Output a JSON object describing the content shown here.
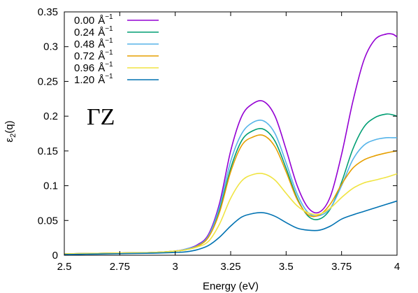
{
  "chart_data": {
    "type": "line",
    "xlabel": "Energy (eV)",
    "ylabel_main": "ε",
    "ylabel_sub": "2",
    "ylabel_rest": "(q)",
    "xlim": [
      2.5,
      4.0
    ],
    "ylim": [
      0,
      0.35
    ],
    "xticks": [
      {
        "value": 2.5,
        "label": "2.5"
      },
      {
        "value": 2.75,
        "label": "2.75"
      },
      {
        "value": 3.0,
        "label": "3"
      },
      {
        "value": 3.25,
        "label": "3.25"
      },
      {
        "value": 3.5,
        "label": "3.5"
      },
      {
        "value": 3.75,
        "label": "3.75"
      },
      {
        "value": 4.0,
        "label": "4"
      }
    ],
    "yticks": [
      {
        "value": 0,
        "label": "0"
      },
      {
        "value": 0.05,
        "label": "0.05"
      },
      {
        "value": 0.1,
        "label": "0.1"
      },
      {
        "value": 0.15,
        "label": "0.15"
      },
      {
        "value": 0.2,
        "label": "0.2"
      },
      {
        "value": 0.25,
        "label": "0.25"
      },
      {
        "value": 0.3,
        "label": "0.3"
      },
      {
        "value": 0.35,
        "label": "0.35"
      }
    ],
    "grid": false,
    "legend_position": "top-left",
    "annotation": "ΓZ",
    "x": [
      2.5,
      2.6,
      2.7,
      2.8,
      2.9,
      3.0,
      3.05,
      3.1,
      3.15,
      3.2,
      3.25,
      3.3,
      3.35,
      3.4,
      3.45,
      3.5,
      3.55,
      3.6,
      3.65,
      3.7,
      3.75,
      3.8,
      3.85,
      3.9,
      3.95,
      3.98,
      4.0
    ],
    "series": [
      {
        "name": "0.00",
        "unit": "Å",
        "unit_sup": "−1",
        "color": "#9400d3",
        "values": [
          0.002,
          0.0025,
          0.003,
          0.0035,
          0.004,
          0.006,
          0.009,
          0.015,
          0.03,
          0.075,
          0.15,
          0.2,
          0.218,
          0.221,
          0.2,
          0.152,
          0.1,
          0.068,
          0.062,
          0.085,
          0.145,
          0.22,
          0.28,
          0.31,
          0.318,
          0.318,
          0.314
        ]
      },
      {
        "name": "0.24",
        "unit": "Å",
        "unit_sup": "−1",
        "color": "#009e73",
        "values": [
          0.002,
          0.0025,
          0.003,
          0.0035,
          0.004,
          0.006,
          0.008,
          0.013,
          0.027,
          0.065,
          0.125,
          0.165,
          0.179,
          0.181,
          0.164,
          0.125,
          0.082,
          0.056,
          0.052,
          0.067,
          0.105,
          0.152,
          0.184,
          0.198,
          0.203,
          0.202,
          0.2
        ]
      },
      {
        "name": "0.48",
        "unit": "Å",
        "unit_sup": "−1",
        "color": "#56b4e9",
        "values": [
          0.002,
          0.0025,
          0.003,
          0.0035,
          0.004,
          0.006,
          0.009,
          0.014,
          0.028,
          0.07,
          0.135,
          0.175,
          0.191,
          0.193,
          0.175,
          0.133,
          0.088,
          0.061,
          0.057,
          0.068,
          0.1,
          0.137,
          0.158,
          0.166,
          0.169,
          0.169,
          0.169
        ]
      },
      {
        "name": "0.72",
        "unit": "Å",
        "unit_sup": "−1",
        "color": "#e69f00",
        "values": [
          0.002,
          0.0025,
          0.003,
          0.0035,
          0.004,
          0.006,
          0.008,
          0.013,
          0.026,
          0.062,
          0.12,
          0.158,
          0.17,
          0.172,
          0.156,
          0.12,
          0.08,
          0.058,
          0.058,
          0.074,
          0.102,
          0.125,
          0.137,
          0.143,
          0.147,
          0.149,
          0.15
        ]
      },
      {
        "name": "0.96",
        "unit": "Å",
        "unit_sup": "−1",
        "color": "#f0e442",
        "values": [
          0.002,
          0.0025,
          0.003,
          0.0035,
          0.004,
          0.006,
          0.008,
          0.012,
          0.02,
          0.045,
          0.082,
          0.107,
          0.116,
          0.117,
          0.108,
          0.089,
          0.071,
          0.061,
          0.059,
          0.068,
          0.083,
          0.096,
          0.104,
          0.108,
          0.112,
          0.115,
          0.117
        ]
      },
      {
        "name": "1.20",
        "unit": "Å",
        "unit_sup": "−1",
        "color": "#0072b2",
        "values": [
          0.001,
          0.0015,
          0.002,
          0.0025,
          0.003,
          0.004,
          0.005,
          0.008,
          0.014,
          0.026,
          0.042,
          0.055,
          0.06,
          0.061,
          0.056,
          0.047,
          0.039,
          0.036,
          0.036,
          0.042,
          0.052,
          0.058,
          0.063,
          0.068,
          0.073,
          0.076,
          0.078
        ]
      }
    ]
  }
}
